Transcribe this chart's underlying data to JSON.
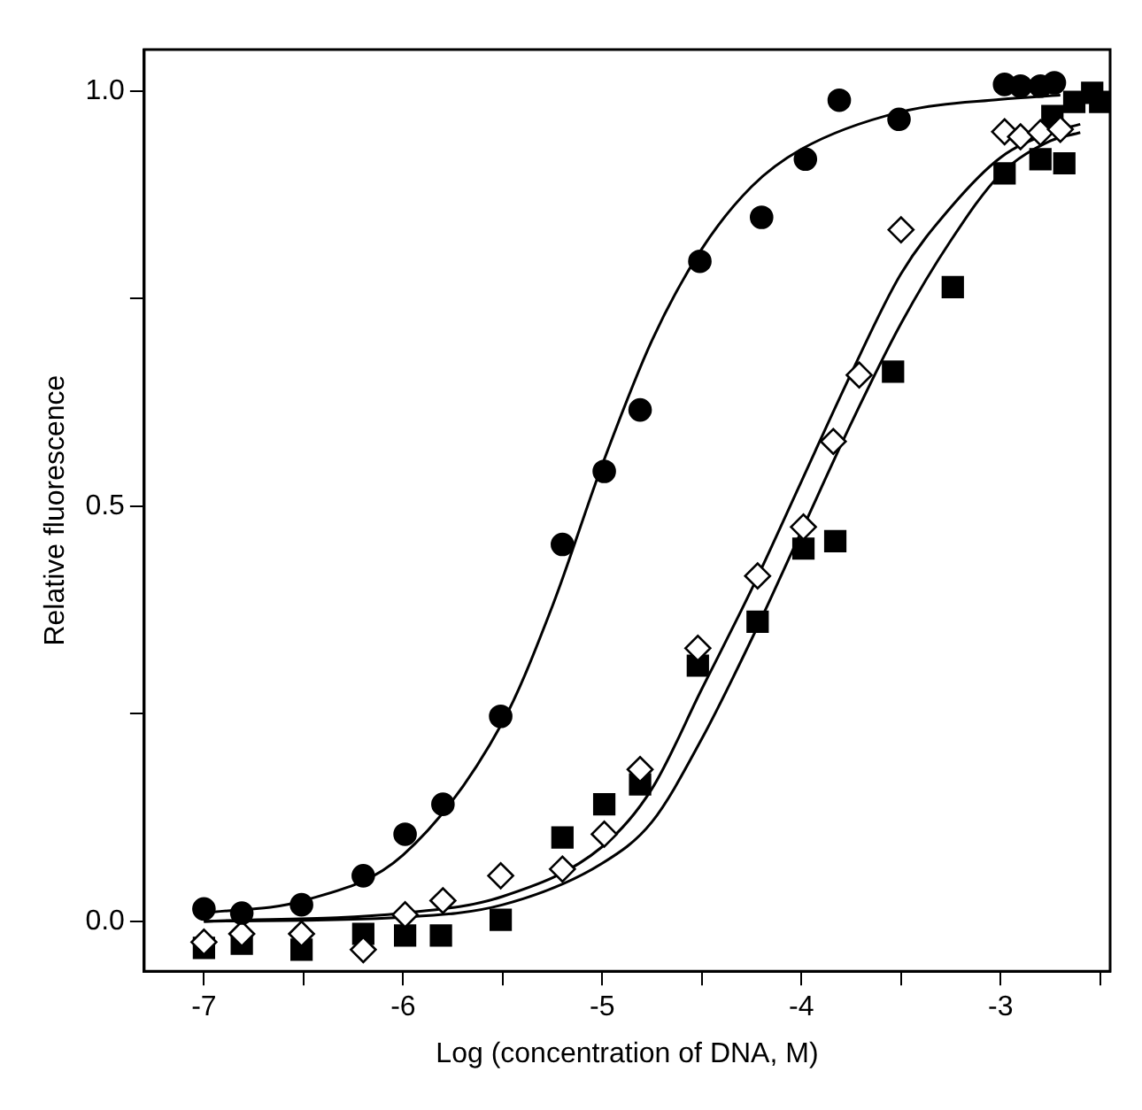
{
  "chart_data": {
    "type": "scatter",
    "xlabel": "Log (concentration of DNA, M)",
    "ylabel": "Relative fluorescence",
    "xlim": [
      -7.3,
      -2.45
    ],
    "ylim": [
      -0.06,
      1.05
    ],
    "xticks": [
      -7,
      {
        "value": -6.5,
        "label": null
      },
      -6,
      {
        "value": -5.5,
        "label": null
      },
      -5,
      {
        "value": -4.5,
        "label": null
      },
      -4,
      {
        "value": -3.5,
        "label": null
      },
      -3,
      {
        "value": -2.5,
        "label": null
      }
    ],
    "yticks": [
      {
        "value": 0,
        "label": "0.0"
      },
      {
        "value": 0.25,
        "label": null
      },
      {
        "value": 0.5,
        "label": "0.5"
      },
      {
        "value": 0.75,
        "label": null
      },
      {
        "value": 1,
        "label": "1.0"
      }
    ],
    "grid": false,
    "legend": false,
    "series": [
      {
        "type": "scatter",
        "marker": "circle",
        "color": "#000000",
        "x": [
          -7,
          -6.81,
          -6.51,
          -6.2,
          -5.99,
          -5.8,
          -5.51,
          -5.2,
          -4.99,
          -4.81,
          -4.51,
          -4.2,
          -3.98,
          -3.81,
          -3.51,
          -2.98,
          -2.9,
          -2.8,
          -2.73
        ],
        "values": [
          0.015,
          0.01,
          0.02,
          0.055,
          0.105,
          0.141,
          0.247,
          0.454,
          0.542,
          0.616,
          0.795,
          0.848,
          0.918,
          0.989,
          0.966,
          1.008,
          1.006,
          1.006,
          1.01
        ]
      },
      {
        "type": "scatter",
        "marker": "diamond",
        "color": "#ffffff",
        "x": [
          -7,
          -6.81,
          -6.51,
          -6.2,
          -5.99,
          -5.8,
          -5.51,
          -5.2,
          -4.99,
          -4.81,
          -4.52,
          -4.22,
          -3.99,
          -3.84,
          -3.71,
          -3.5,
          -2.98,
          -2.9,
          -2.8,
          -2.7
        ],
        "values": [
          -0.025,
          -0.015,
          -0.015,
          -0.034,
          0.008,
          0.025,
          0.055,
          0.063,
          0.105,
          0.183,
          0.329,
          0.416,
          0.475,
          0.578,
          0.658,
          0.833,
          0.951,
          0.945,
          0.95,
          0.954
        ]
      },
      {
        "type": "scatter",
        "marker": "square",
        "color": "#000000",
        "x": [
          -7,
          -6.81,
          -6.51,
          -6.2,
          -5.99,
          -5.81,
          -5.51,
          -5.2,
          -4.99,
          -4.81,
          -4.52,
          -4.22,
          -3.99,
          -3.83,
          -3.54,
          -3.24,
          -2.98,
          -2.8,
          -2.68,
          -2.74,
          -2.63,
          -2.54,
          -2.5
        ],
        "values": [
          -0.032,
          -0.027,
          -0.034,
          -0.015,
          -0.017,
          -0.017,
          0.002,
          0.101,
          0.141,
          0.165,
          0.308,
          0.361,
          0.449,
          0.458,
          0.662,
          0.764,
          0.901,
          0.918,
          0.913,
          0.97,
          0.987,
          0.998,
          0.987
        ]
      },
      {
        "type": "line",
        "marker": "none",
        "color": "#000000",
        "x": [
          -7,
          -6.5,
          -6,
          -5.5,
          -5.25,
          -5,
          -4.75,
          -4.5,
          -4.25,
          -4,
          -3.5,
          -3,
          -2.7
        ],
        "values": [
          0.01,
          0.025,
          0.08,
          0.24,
          0.38,
          0.55,
          0.7,
          0.81,
          0.885,
          0.93,
          0.975,
          0.99,
          0.995
        ]
      },
      {
        "type": "line",
        "marker": "none",
        "color": "#000000",
        "x": [
          -7,
          -6,
          -5.5,
          -5,
          -4.75,
          -4.5,
          -4.25,
          -4,
          -3.75,
          -3.5,
          -3.25,
          -3,
          -2.75,
          -2.6
        ],
        "values": [
          0,
          0.01,
          0.03,
          0.09,
          0.16,
          0.28,
          0.4,
          0.53,
          0.66,
          0.78,
          0.86,
          0.92,
          0.95,
          0.96
        ]
      },
      {
        "type": "line",
        "marker": "none",
        "color": "#000000",
        "x": [
          -7,
          -6,
          -5.5,
          -5,
          -4.75,
          -4.5,
          -4.25,
          -4,
          -3.75,
          -3.5,
          -3.25,
          -3,
          -2.75,
          -2.6
        ],
        "values": [
          0,
          0.005,
          0.02,
          0.07,
          0.12,
          0.22,
          0.34,
          0.47,
          0.6,
          0.72,
          0.82,
          0.9,
          0.94,
          0.95
        ]
      }
    ]
  }
}
